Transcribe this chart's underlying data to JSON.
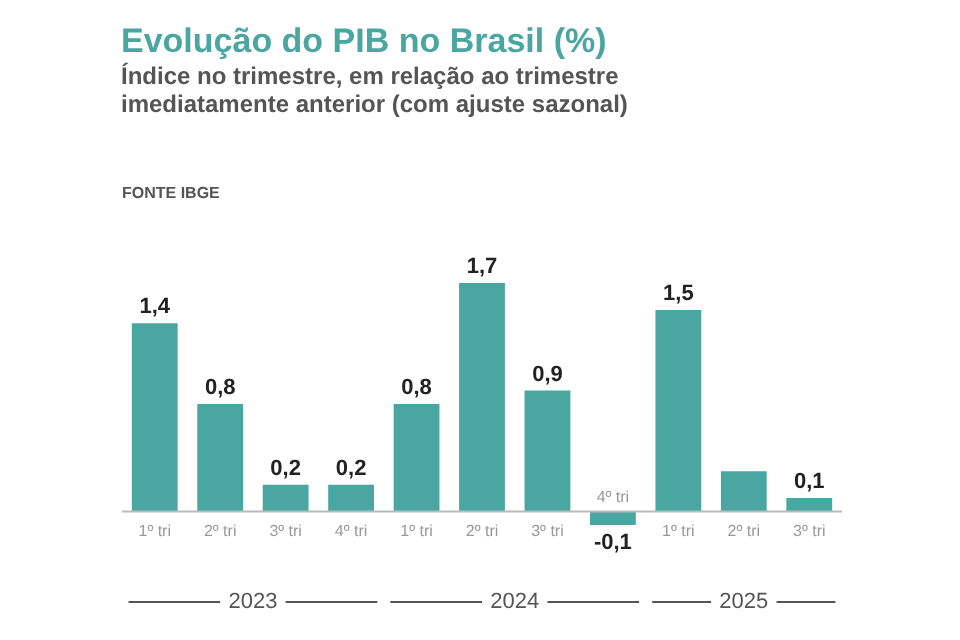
{
  "chart_data": {
    "type": "bar",
    "title": "Evolução do PIB no Brasil (%)",
    "subtitle": "Índice no trimestre, em relação ao trimestre imediatamente anterior (com ajuste sazonal)",
    "categories": [
      "1º tri",
      "2º tri",
      "3º tri",
      "4º tri",
      "1º tri",
      "2º tri",
      "3º tri",
      "4º tri",
      "1º tri",
      "2º tri",
      "3º tri"
    ],
    "values": [
      1.4,
      0.8,
      0.2,
      0.2,
      0.8,
      1.7,
      0.9,
      -0.1,
      1.5,
      0.3,
      0.1
    ],
    "value_labels": [
      "1,4",
      "0,8",
      "0,2",
      "0,2",
      "0,8",
      "1,7",
      "0,9",
      "-0,1",
      "1,5",
      null,
      "0,1"
    ],
    "color": "#4aa6a0",
    "annotations": [
      "FONTE IBGE",
      "2023",
      "2024",
      "2025"
    ]
  }
}
